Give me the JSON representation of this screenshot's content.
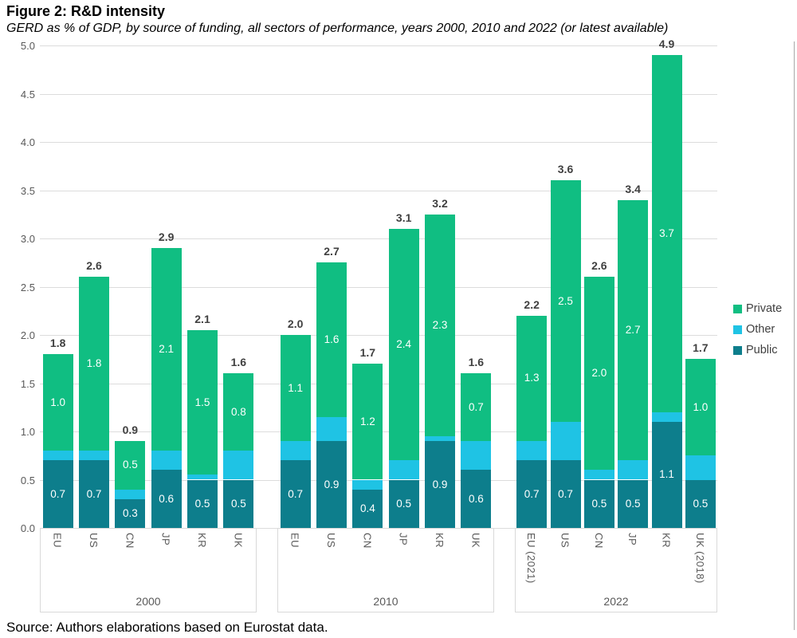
{
  "header": {
    "title": "Figure 2: R&D intensity",
    "subtitle": "GERD as % of GDP, by source of funding, all sectors of performance, years 2000, 2010 and 2022 (or latest available)"
  },
  "source_note": "Source: Authors elaborations based on Eurostat data.",
  "legend": {
    "position": "right",
    "items": [
      {
        "label": "Private",
        "color": "#10be82"
      },
      {
        "label": "Other",
        "color": "#1fc3e4"
      },
      {
        "label": "Public",
        "color": "#0d7e8c"
      }
    ]
  },
  "colors": {
    "private": "#10be82",
    "other": "#1fc3e4",
    "public": "#0d7e8c",
    "gridline": "#dcdcdc",
    "axis_text": "#595959",
    "value_text": "#404040",
    "segment_label_text": "#ffffff"
  },
  "chart_data": {
    "type": "bar",
    "stacked": true,
    "title": "Figure 2: R&D intensity",
    "subtitle": "GERD as % of GDP, by source of funding, all sectors of performance, years 2000, 2010 and 2022 (or latest available)",
    "xlabel": "",
    "ylabel": "",
    "ylim": [
      0,
      5
    ],
    "ytick_step": 0.5,
    "ytick_format": "one-decimal",
    "grid": true,
    "legend_position": "right",
    "stack_order_bottom_to_top": [
      "Public",
      "Other",
      "Private"
    ],
    "note": "Other segment values are unlabeled in the figure and estimated from bar heights",
    "groups": [
      {
        "year": "2000",
        "categories": [
          "EU",
          "US",
          "CN",
          "JP",
          "KR",
          "UK"
        ],
        "series": [
          {
            "name": "Public",
            "labels_shown": true,
            "values": [
              0.7,
              0.7,
              0.3,
              0.6,
              0.5,
              0.5
            ]
          },
          {
            "name": "Other",
            "labels_shown": false,
            "values": [
              0.1,
              0.1,
              0.1,
              0.2,
              0.05,
              0.3
            ]
          },
          {
            "name": "Private",
            "labels_shown": true,
            "values": [
              1.0,
              1.8,
              0.5,
              2.1,
              1.5,
              0.8
            ]
          }
        ],
        "totals": [
          "1.8",
          "2.6",
          "0.9",
          "2.9",
          "2.1",
          "1.6"
        ]
      },
      {
        "year": "2010",
        "categories": [
          "EU",
          "US",
          "CN",
          "JP",
          "KR",
          "UK"
        ],
        "series": [
          {
            "name": "Public",
            "labels_shown": true,
            "values": [
              0.7,
              0.9,
              0.4,
              0.5,
              0.9,
              0.6
            ]
          },
          {
            "name": "Other",
            "labels_shown": false,
            "values": [
              0.2,
              0.25,
              0.1,
              0.2,
              0.05,
              0.3
            ]
          },
          {
            "name": "Private",
            "labels_shown": true,
            "values": [
              1.1,
              1.6,
              1.2,
              2.4,
              2.3,
              0.7
            ]
          }
        ],
        "totals": [
          "2.0",
          "2.7",
          "1.7",
          "3.1",
          "3.2",
          "1.6"
        ]
      },
      {
        "year": "2022",
        "categories": [
          "EU (2021)",
          "US",
          "CN",
          "JP",
          "KR",
          "UK (2018)"
        ],
        "series": [
          {
            "name": "Public",
            "labels_shown": true,
            "values": [
              0.7,
              0.7,
              0.5,
              0.5,
              1.1,
              0.5
            ]
          },
          {
            "name": "Other",
            "labels_shown": false,
            "values": [
              0.2,
              0.4,
              0.1,
              0.2,
              0.1,
              0.25
            ]
          },
          {
            "name": "Private",
            "labels_shown": true,
            "values": [
              1.3,
              2.5,
              2.0,
              2.7,
              3.7,
              1.0
            ]
          }
        ],
        "totals": [
          "2.2",
          "3.6",
          "2.6",
          "3.4",
          "4.9",
          "1.7"
        ]
      }
    ]
  }
}
